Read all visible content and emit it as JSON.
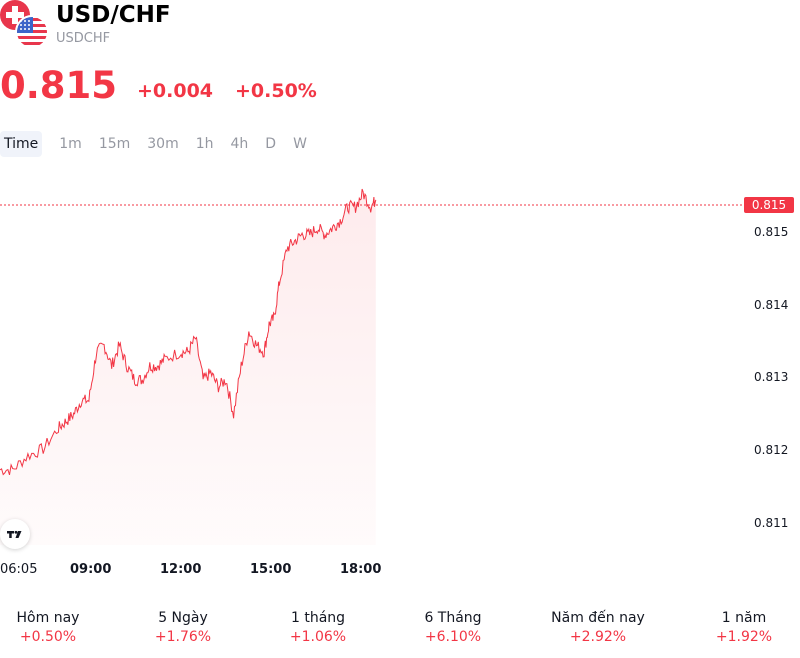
{
  "header": {
    "title": "USD/CHF",
    "symbol": "USDCHF",
    "price": "0.815",
    "change": "+0.004",
    "change_pct": "+0.50%",
    "accent_color": "#f23645"
  },
  "tabs": [
    {
      "label": "Time",
      "active": true
    },
    {
      "label": "1m"
    },
    {
      "label": "15m"
    },
    {
      "label": "30m"
    },
    {
      "label": "1h"
    },
    {
      "label": "4h"
    },
    {
      "label": "D"
    },
    {
      "label": "W"
    }
  ],
  "icons": {
    "flags": "chf-usd-flags-icon",
    "logo": "tradingview-logo-icon"
  },
  "chart_data": {
    "type": "area",
    "title": "",
    "xlabel": "",
    "ylabel": "",
    "x_ticks": [
      "06:05",
      "09:00",
      "12:00",
      "15:00",
      "18:00"
    ],
    "y_ticks": [
      "0.815",
      "0.814",
      "0.813",
      "0.812",
      "0.811"
    ],
    "ylim": [
      0.8106,
      0.8154
    ],
    "last_value_label": "0.815",
    "line_color": "#f23645",
    "grid": false,
    "series": [
      {
        "x": [
          "06:05",
          "06:30",
          "07:00",
          "07:30",
          "08:00",
          "08:15",
          "08:30",
          "08:45",
          "09:00",
          "09:15",
          "09:30",
          "09:45",
          "10:00",
          "10:15",
          "10:30",
          "10:45",
          "11:00",
          "11:15",
          "11:30",
          "12:00",
          "12:15",
          "12:30",
          "12:45",
          "13:00",
          "13:15",
          "13:30",
          "13:45",
          "14:00",
          "14:15",
          "14:30",
          "14:45",
          "14:55",
          "15:05",
          "15:15",
          "15:30",
          "15:45",
          "16:00",
          "16:15",
          "16:30",
          "16:45",
          "17:00",
          "17:15",
          "17:30",
          "17:45",
          "18:00",
          "18:15",
          "18:25"
        ],
        "values": [
          0.8114,
          0.8114,
          0.8116,
          0.8117,
          0.812,
          0.8121,
          0.8122,
          0.8124,
          0.8124,
          0.8131,
          0.8132,
          0.8129,
          0.8132,
          0.8129,
          0.8127,
          0.8127,
          0.8129,
          0.8129,
          0.813,
          0.8131,
          0.8131,
          0.8133,
          0.8127,
          0.8128,
          0.8126,
          0.8127,
          0.8122,
          0.8129,
          0.8134,
          0.8132,
          0.8131,
          0.8135,
          0.8136,
          0.8141,
          0.8146,
          0.8147,
          0.8148,
          0.8148,
          0.8149,
          0.8148,
          0.8149,
          0.815,
          0.8152,
          0.8152,
          0.8154,
          0.8152,
          0.8153
        ]
      }
    ]
  },
  "performance": [
    {
      "label": "Hôm nay",
      "value": "+0.50%"
    },
    {
      "label": "5 Ngày",
      "value": "+1.76%"
    },
    {
      "label": "1 tháng",
      "value": "+1.06%"
    },
    {
      "label": "6 Tháng",
      "value": "+6.10%"
    },
    {
      "label": "Năm đến nay",
      "value": "+2.92%"
    },
    {
      "label": "1 năm",
      "value": "+1.92%"
    }
  ]
}
